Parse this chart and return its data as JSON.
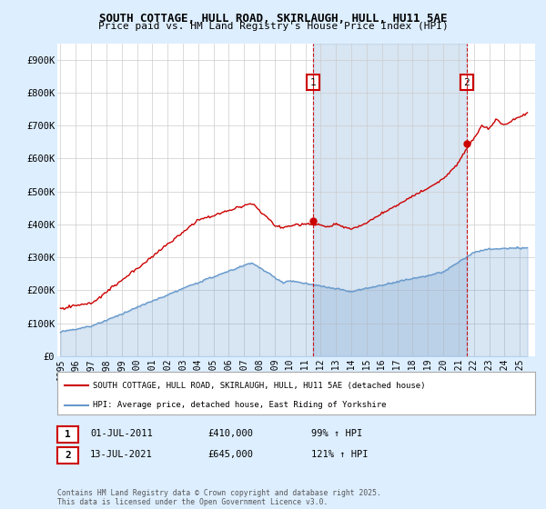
{
  "title": "SOUTH COTTAGE, HULL ROAD, SKIRLAUGH, HULL, HU11 5AE",
  "subtitle": "Price paid vs. HM Land Registry's House Price Index (HPI)",
  "legend_line1": "SOUTH COTTAGE, HULL ROAD, SKIRLAUGH, HULL, HU11 5AE (detached house)",
  "legend_line2": "HPI: Average price, detached house, East Riding of Yorkshire",
  "annotation1_label": "1",
  "annotation1_date": "01-JUL-2011",
  "annotation1_price": "£410,000",
  "annotation1_hpi": "99% ↑ HPI",
  "annotation2_label": "2",
  "annotation2_date": "13-JUL-2021",
  "annotation2_price": "£645,000",
  "annotation2_hpi": "121% ↑ HPI",
  "footnote": "Contains HM Land Registry data © Crown copyright and database right 2025.\nThis data is licensed under the Open Government Licence v3.0.",
  "hpi_color": "#6699cc",
  "price_color": "#cc0000",
  "sale1_x": 2011.5,
  "sale1_y": 410000,
  "sale2_x": 2021.54,
  "sale2_y": 645000,
  "ylim": [
    0,
    950000
  ],
  "xlim": [
    1994.8,
    2026.0
  ],
  "yticks": [
    0,
    100000,
    200000,
    300000,
    400000,
    500000,
    600000,
    700000,
    800000,
    900000
  ],
  "ytick_labels": [
    "£0",
    "£100K",
    "£200K",
    "£300K",
    "£400K",
    "£500K",
    "£600K",
    "£700K",
    "£800K",
    "£900K"
  ],
  "xticks": [
    1995,
    1996,
    1997,
    1998,
    1999,
    2000,
    2001,
    2002,
    2003,
    2004,
    2005,
    2006,
    2007,
    2008,
    2009,
    2010,
    2011,
    2012,
    2013,
    2014,
    2015,
    2016,
    2017,
    2018,
    2019,
    2020,
    2021,
    2022,
    2023,
    2024,
    2025
  ],
  "background_color": "#ddeeff",
  "plot_bg_color": "#ffffff",
  "shade_color": "#ddeeff"
}
